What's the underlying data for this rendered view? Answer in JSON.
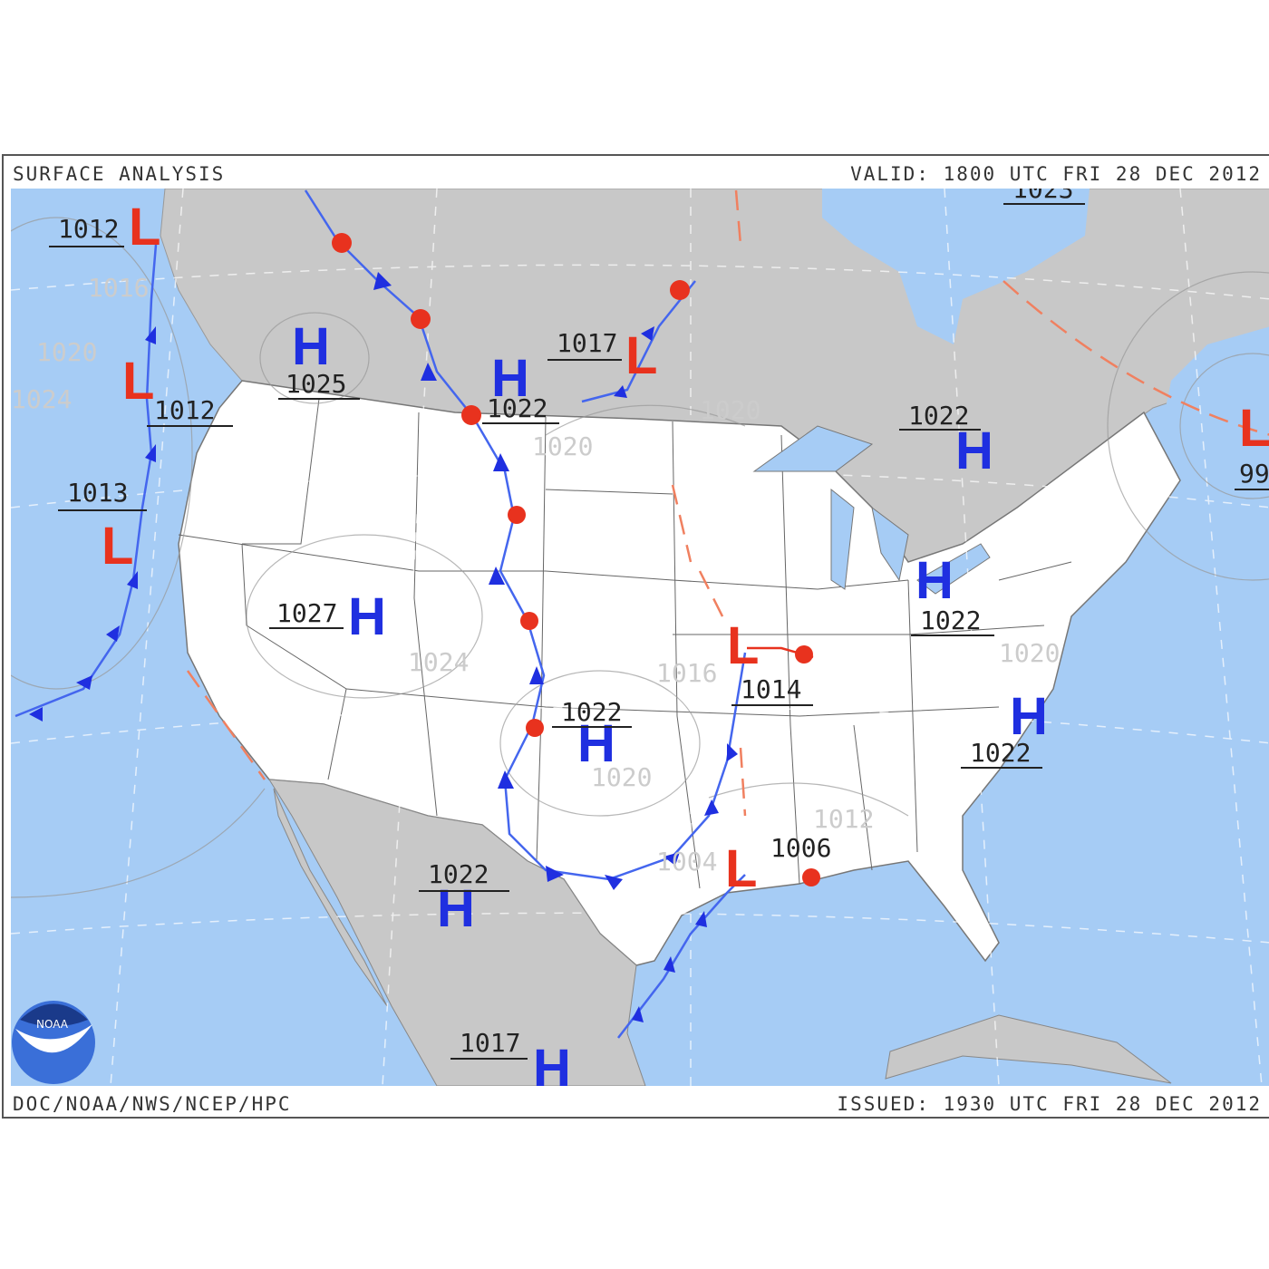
{
  "header": {
    "title": "SURFACE ANALYSIS",
    "valid": "VALID: 1800 UTC FRI 28 DEC 2012"
  },
  "footer": {
    "agency": "DOC/NOAA/NWS/NCEP/HPC",
    "issued": "ISSUED: 1930 UTC FRI 28 DEC 2012"
  },
  "logo": {
    "text": "NOAA"
  },
  "colors": {
    "ocean": "#a6ccf5",
    "land_other": "#c8c8c8",
    "land_us": "#ffffff",
    "high": "#1f2fe0",
    "low": "#e8321e",
    "cold_front": "#1f2fe0",
    "warm_front": "#e8321e",
    "trough": "#f08060"
  },
  "centers": [
    {
      "type": "L",
      "pressure": "1012"
    },
    {
      "type": "L",
      "pressure": "1012"
    },
    {
      "type": "L",
      "pressure": "1013"
    },
    {
      "type": "H",
      "pressure": "1025"
    },
    {
      "type": "H",
      "pressure": "1022"
    },
    {
      "type": "L",
      "pressure": "1017"
    },
    {
      "type": "H",
      "pressure": "1022"
    },
    {
      "type": "L",
      "pressure": ""
    },
    {
      "type": "H",
      "pressure": "1027"
    },
    {
      "type": "H",
      "pressure": "1022"
    },
    {
      "type": "L",
      "pressure": "1014"
    },
    {
      "type": "H",
      "pressure": "1022"
    },
    {
      "type": "H",
      "pressure": "1022"
    },
    {
      "type": "L",
      "pressure": "1006"
    },
    {
      "type": "H",
      "pressure": "1022"
    },
    {
      "type": "H",
      "pressure": "1017"
    }
  ],
  "edge_labels": [
    "1023",
    "99"
  ],
  "isobar_labels": [
    "1016",
    "1020",
    "1024",
    "1020",
    "1020",
    "1024",
    "1016",
    "1020",
    "1020",
    "1012",
    "1004"
  ]
}
